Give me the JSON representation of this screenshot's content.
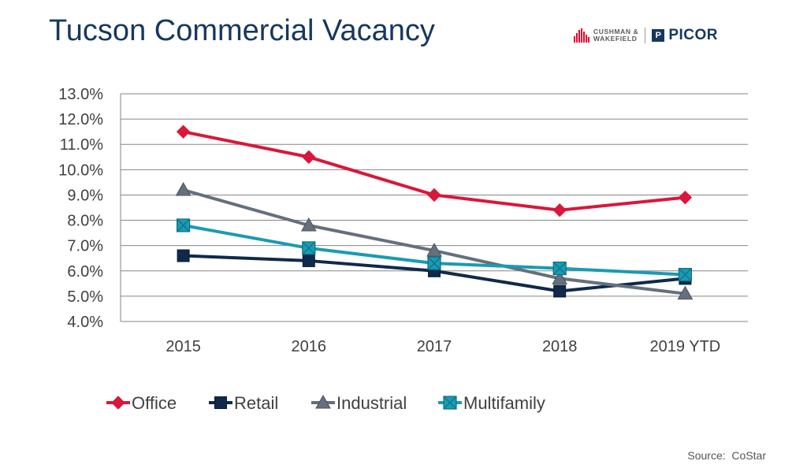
{
  "title": "Tucson Commercial Vacancy",
  "logo": {
    "cw_line1": "CUSHMAN &",
    "cw_line2": "WAKEFIELD",
    "picor": "PICOR"
  },
  "source": "Source:  CoStar",
  "colors": {
    "office": "#d9173a",
    "retail": "#0f2a4a",
    "industrial": "#65707e",
    "multifamily": "#1a9bb3",
    "grid": "#868686"
  },
  "chart_data": {
    "type": "line",
    "title": "",
    "xlabel": "",
    "ylabel": "",
    "categories": [
      "2015",
      "2016",
      "2017",
      "2018",
      "2019 YTD"
    ],
    "ylim": [
      4.0,
      13.0
    ],
    "yticks": [
      "4.0%",
      "5.0%",
      "6.0%",
      "7.0%",
      "8.0%",
      "9.0%",
      "10.0%",
      "11.0%",
      "12.0%",
      "13.0%"
    ],
    "grid": true,
    "legend_position": "bottom",
    "series": [
      {
        "name": "Office",
        "marker": "diamond",
        "values": [
          11.5,
          10.5,
          9.0,
          8.4,
          8.9
        ]
      },
      {
        "name": "Retail",
        "marker": "square",
        "values": [
          6.6,
          6.4,
          6.0,
          5.2,
          5.7
        ]
      },
      {
        "name": "Industrial",
        "marker": "triangle",
        "values": [
          9.2,
          7.8,
          6.8,
          5.7,
          5.1
        ]
      },
      {
        "name": "Multifamily",
        "marker": "square-x",
        "values": [
          7.8,
          6.9,
          6.3,
          6.1,
          5.85
        ]
      }
    ]
  }
}
